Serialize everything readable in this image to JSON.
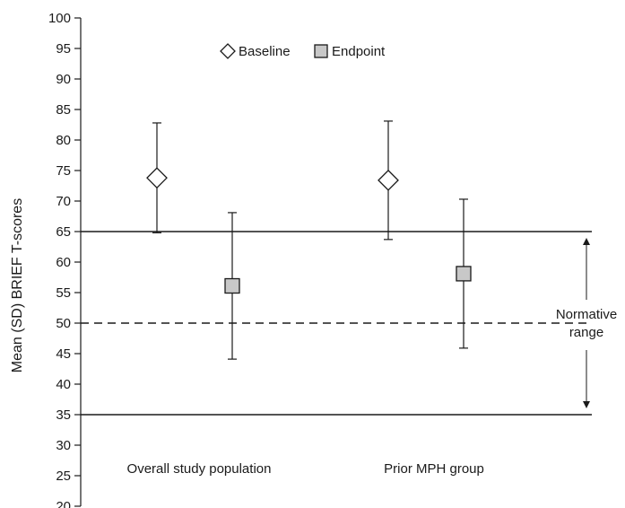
{
  "chart_data": {
    "type": "scatter",
    "ylabel": "Mean (SD) BRIEF T-scores",
    "ylim": [
      20,
      100
    ],
    "y_ticks": [
      "100",
      "95",
      "90",
      "85",
      "80",
      "75",
      "70",
      "65",
      "60",
      "55",
      "50",
      "45",
      "40",
      "35",
      "30",
      "25",
      "20"
    ],
    "categories": [
      "Overall study population",
      "Prior MPH group"
    ],
    "legend": {
      "placement": "top-center",
      "items": [
        {
          "label": "Baseline",
          "marker": "diamond"
        },
        {
          "label": "Endpoint",
          "marker": "square"
        }
      ]
    },
    "series": [
      {
        "name": "Baseline",
        "marker": "diamond",
        "values": [
          73.8,
          73.4
        ],
        "sd": [
          9.0,
          9.7
        ],
        "fill": "#ffffff"
      },
      {
        "name": "Endpoint",
        "marker": "square",
        "values": [
          56.1,
          58.1
        ],
        "sd": [
          12.0,
          12.2
        ],
        "fill": "#c8c8c8"
      }
    ],
    "reference_lines": [
      {
        "y": 65,
        "style": "solid"
      },
      {
        "y": 50,
        "style": "dashed"
      },
      {
        "y": 35,
        "style": "solid"
      }
    ],
    "annotation": {
      "lines": [
        "Normative",
        "range"
      ],
      "range": [
        35,
        65
      ]
    }
  }
}
